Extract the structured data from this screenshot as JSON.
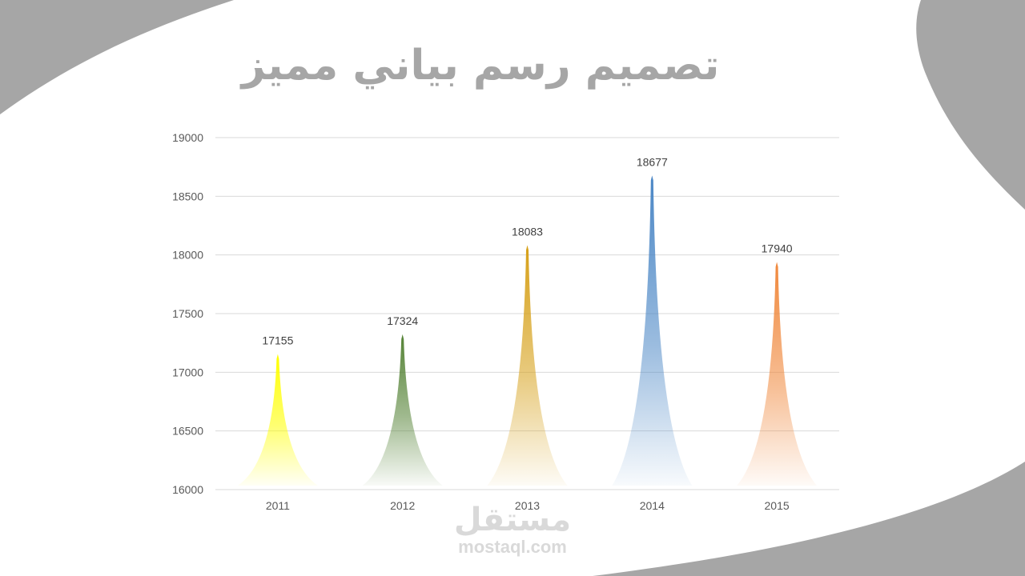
{
  "slide": {
    "title": "تصميم رسم بياني مميز",
    "watermark_arabic": "مستقل",
    "watermark_latin": "mostaql.com",
    "background_shape_color": "#a6a6a6"
  },
  "chart_data": {
    "type": "bar",
    "title": "",
    "xlabel": "",
    "ylabel": "",
    "ylim": [
      16000,
      19000
    ],
    "yticks": [
      16000,
      16500,
      17000,
      17500,
      18000,
      18500,
      19000
    ],
    "categories": [
      "2011",
      "2012",
      "2013",
      "2014",
      "2015"
    ],
    "values": [
      17155,
      17324,
      18083,
      18677,
      17940
    ],
    "colors": [
      "#ffff00",
      "#548235",
      "#d6a018",
      "#4a86c5",
      "#f0883c"
    ],
    "data_labels": [
      "17155",
      "17324",
      "18083",
      "18677",
      "17940"
    ],
    "grid": true,
    "legend": "none"
  }
}
